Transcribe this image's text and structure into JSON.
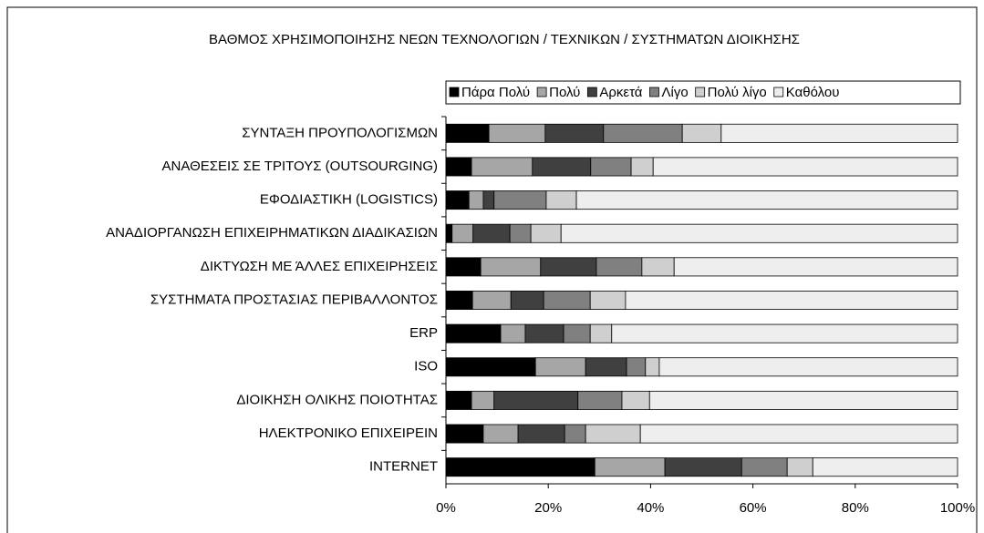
{
  "chart_data": {
    "type": "stacked-bar-horizontal",
    "title": "ΒΑΘΜΟΣ ΧΡΗΣΙΜΟΠΟΙΗΣΗΣ ΝΕΩΝ ΤΕΧΝΟΛΟΓΙΩΝ / ΤΕΧΝΙΚΩΝ / ΣΥΣΤΗΜΑΤΩΝ ΔΙΟΙΚΗΣΗΣ",
    "categories": [
      "ΣΥΝΤΑΞΗ ΠΡΟΥΠΟΛΟΓΙΣΜΩΝ",
      "ΑΝΑΘΕΣΕΙΣ ΣΕ ΤΡΙΤΟΥΣ (OUTSOURGING)",
      "ΕΦΟΔΙΑΣΤΙΚΗ (LOGISTICS)",
      "ΑΝΑΔΙΟΡΓΑΝΩΣΗ ΕΠΙΧΕΙΡΗΜΑΤΙΚΩΝ ΔΙΑΔΙΚΑΣΙΩΝ",
      "ΔΙΚΤΥΩΣΗ ΜΕ ΆΛΛΕΣ ΕΠΙΧΕΙΡΗΣΕΙΣ",
      "ΣΥΣΤΗΜΑΤΑ ΠΡΟΣΤΑΣΙΑΣ ΠΕΡΙΒΑΛΛΟΝΤΟΣ",
      "ERP",
      "ISO",
      "ΔΙΟΙΚΗΣΗ ΟΛΙΚΗΣ ΠΟΙΟΤΗΤΑΣ",
      "ΗΛΕΚΤΡΟΝΙΚΟ ΕΠΙΧΕΙΡΕΙΝ",
      "INTERNET"
    ],
    "series": [
      {
        "name": "Πάρα Πολύ",
        "color": "#000000",
        "values": [
          8.4,
          5.0,
          4.5,
          1.2,
          6.8,
          5.2,
          10.7,
          17.5,
          5.0,
          7.3,
          29.1
        ]
      },
      {
        "name": "Πολύ",
        "color": "#a6a6a6",
        "values": [
          11.0,
          11.9,
          2.8,
          4.1,
          11.7,
          7.5,
          4.8,
          9.8,
          4.4,
          6.8,
          13.7
        ]
      },
      {
        "name": "Αρκετά",
        "color": "#404040",
        "values": [
          11.4,
          11.4,
          2.1,
          7.2,
          10.9,
          6.4,
          7.5,
          8.0,
          16.4,
          9.1,
          15.0
        ]
      },
      {
        "name": "Λίγο",
        "color": "#808080",
        "values": [
          15.4,
          7.9,
          10.2,
          4.1,
          8.9,
          9.1,
          5.2,
          3.7,
          8.6,
          4.1,
          8.9
        ]
      },
      {
        "name": "Πολύ λίγο",
        "color": "#cfcfcf",
        "values": [
          7.6,
          4.3,
          5.9,
          5.9,
          6.3,
          6.9,
          4.2,
          2.7,
          5.4,
          10.7,
          5.0
        ]
      },
      {
        "name": "Καθόλου",
        "color": "#eeeeee",
        "values": [
          46.2,
          59.5,
          74.5,
          77.5,
          55.4,
          64.9,
          67.6,
          58.3,
          60.2,
          62.0,
          28.3
        ]
      }
    ],
    "xlim": [
      0,
      100
    ],
    "xticks": [
      {
        "value": 0,
        "label": "0%"
      },
      {
        "value": 20,
        "label": "20%"
      },
      {
        "value": 40,
        "label": "40%"
      },
      {
        "value": 60,
        "label": "60%"
      },
      {
        "value": 80,
        "label": "80%"
      },
      {
        "value": 100,
        "label": "100%"
      }
    ],
    "legend": "top"
  }
}
